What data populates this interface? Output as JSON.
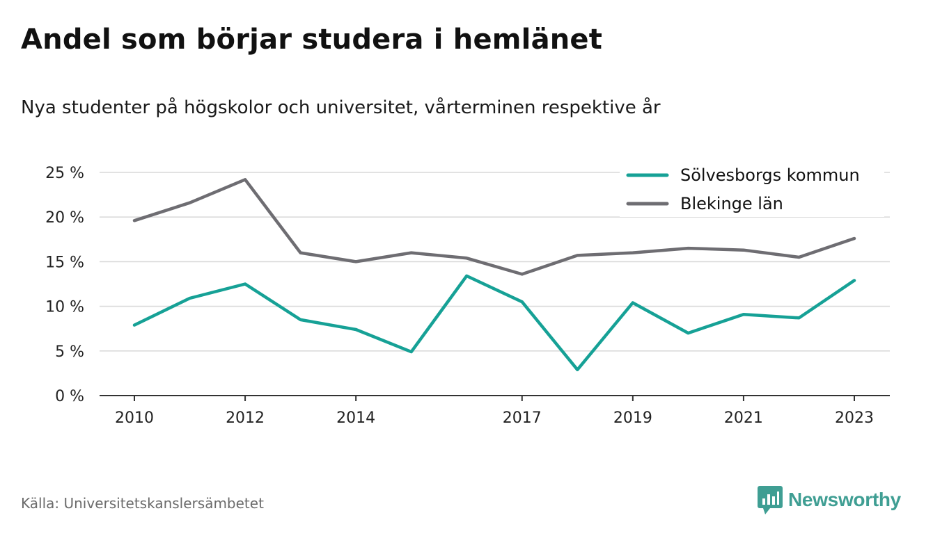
{
  "title": "Andel som börjar studera i hemlänet",
  "subtitle": "Nya studenter på högskolor och universitet, vårterminen respektive år",
  "source": "Källa: Universitetskanslersämbetet",
  "brand": {
    "name": "Newsworthy",
    "icon": "newsworthy-logo-icon",
    "color": "#3f9e93"
  },
  "chart_data": {
    "type": "line",
    "title": "Andel som börjar studera i hemlänet",
    "subtitle": "Nya studenter på högskolor och universitet, vårterminen respektive år",
    "x": [
      2010,
      2011,
      2012,
      2013,
      2014,
      2015,
      2016,
      2017,
      2018,
      2019,
      2020,
      2021,
      2022,
      2023
    ],
    "x_ticks": [
      "2010",
      "2012",
      "2014",
      "2017",
      "2019",
      "2021",
      "2023"
    ],
    "y_ticks": [
      "0 %",
      "5 %",
      "10 %",
      "15 %",
      "20 %",
      "25 %"
    ],
    "ylim": [
      0,
      25
    ],
    "grid": true,
    "legend_position": "top-right",
    "series": [
      {
        "name": "Sölvesborgs kommun",
        "color": "#16a196",
        "values": [
          7.9,
          10.9,
          12.5,
          8.5,
          7.4,
          4.9,
          13.4,
          10.5,
          2.9,
          10.4,
          7.0,
          9.1,
          8.7,
          12.9
        ]
      },
      {
        "name": "Blekinge län",
        "color": "#6e6d72",
        "values": [
          19.6,
          21.6,
          24.2,
          16.0,
          15.0,
          16.0,
          15.4,
          13.6,
          15.7,
          16.0,
          16.5,
          16.3,
          15.5,
          17.6
        ]
      }
    ]
  }
}
